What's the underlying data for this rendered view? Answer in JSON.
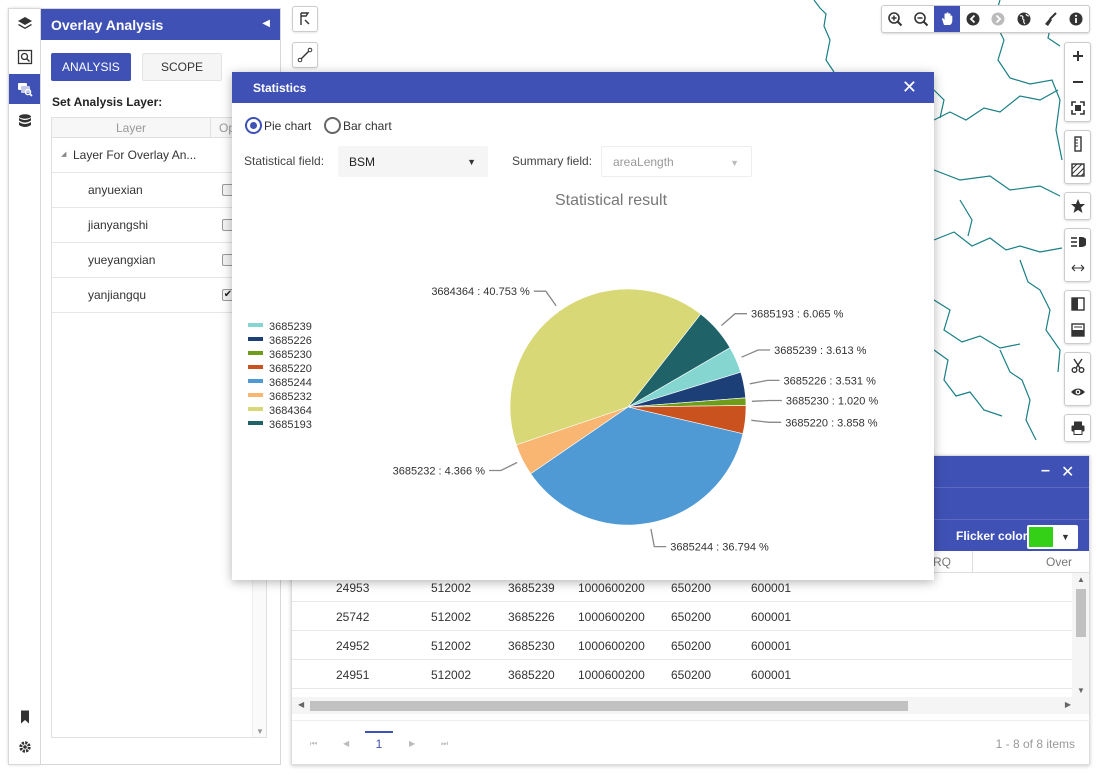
{
  "panel": {
    "title": "Overlay Analysis",
    "tabs": {
      "analysis": "ANALYSIS",
      "scope": "SCOPE"
    },
    "set_layer_label": "Set Analysis Layer:",
    "columns": {
      "layer": "Layer",
      "operation": "Op"
    },
    "layers": [
      {
        "name": "Layer For Overlay An...",
        "checked": false,
        "group": true
      },
      {
        "name": "anyuexian",
        "checked": false
      },
      {
        "name": "jianyangshi",
        "checked": false
      },
      {
        "name": "yueyangxian",
        "checked": false
      },
      {
        "name": "yanjiangqu",
        "checked": true
      }
    ]
  },
  "dialog": {
    "title": "Statistics",
    "chart_type_options": [
      "Pie chart",
      "Bar chart"
    ],
    "selected_chart_type": "Pie chart",
    "statistical_field_label": "Statistical field:",
    "statistical_field_value": "BSM",
    "summary_field_label": "Summary field:",
    "summary_field_value": "areaLength"
  },
  "chart_data": {
    "type": "pie",
    "title": "Statistical result",
    "legend_position": "left",
    "slices": [
      {
        "name": "3685193",
        "percent": 6.065,
        "label": "3685193 : 6.065 %",
        "color": "#1f6369"
      },
      {
        "name": "3685239",
        "percent": 3.613,
        "label": "3685239 : 3.613 %",
        "color": "#85d6d0"
      },
      {
        "name": "3685226",
        "percent": 3.531,
        "label": "3685226 : 3.531 %",
        "color": "#1d3f78"
      },
      {
        "name": "3685230",
        "percent": 1.02,
        "label": "3685230 : 1.020 %",
        "color": "#6f9d1a"
      },
      {
        "name": "3685220",
        "percent": 3.858,
        "label": "3685220 : 3.858 %",
        "color": "#c9521f"
      },
      {
        "name": "3685244",
        "percent": 36.794,
        "label": "3685244 : 36.794 %",
        "color": "#4f99d4"
      },
      {
        "name": "3685232",
        "percent": 4.366,
        "label": "3685232 : 4.366 %",
        "color": "#f8b672"
      },
      {
        "name": "3684364",
        "percent": 40.753,
        "label": "3684364 : 40.753 %",
        "color": "#d8d877"
      }
    ],
    "legend": [
      "3685239",
      "3685226",
      "3685230",
      "3685220",
      "3685244",
      "3685232",
      "3684364",
      "3685193"
    ]
  },
  "attribute_table": {
    "flicker_label": "Flicker color:",
    "flicker_color": "#33d017",
    "columns_visible": [
      "RQ",
      "Over"
    ],
    "rows": [
      [
        "24953",
        "512002",
        "3685239",
        "1000600200",
        "650200",
        "600001"
      ],
      [
        "25742",
        "512002",
        "3685226",
        "1000600200",
        "650200",
        "600001"
      ],
      [
        "24952",
        "512002",
        "3685230",
        "1000600200",
        "650200",
        "600001"
      ],
      [
        "24951",
        "512002",
        "3685220",
        "1000600200",
        "650200",
        "600001"
      ]
    ],
    "current_page": "1",
    "pager_info": "1 - 8 of 8 items"
  },
  "toolbar_icons": [
    "zoom-in-icon",
    "zoom-out-icon",
    "pan-hand-icon",
    "back-icon",
    "forward-icon",
    "globe-icon",
    "broom-icon",
    "info-icon"
  ],
  "colors": {
    "primary": "#3f51b5",
    "map_boundary": "#1a7f86"
  }
}
